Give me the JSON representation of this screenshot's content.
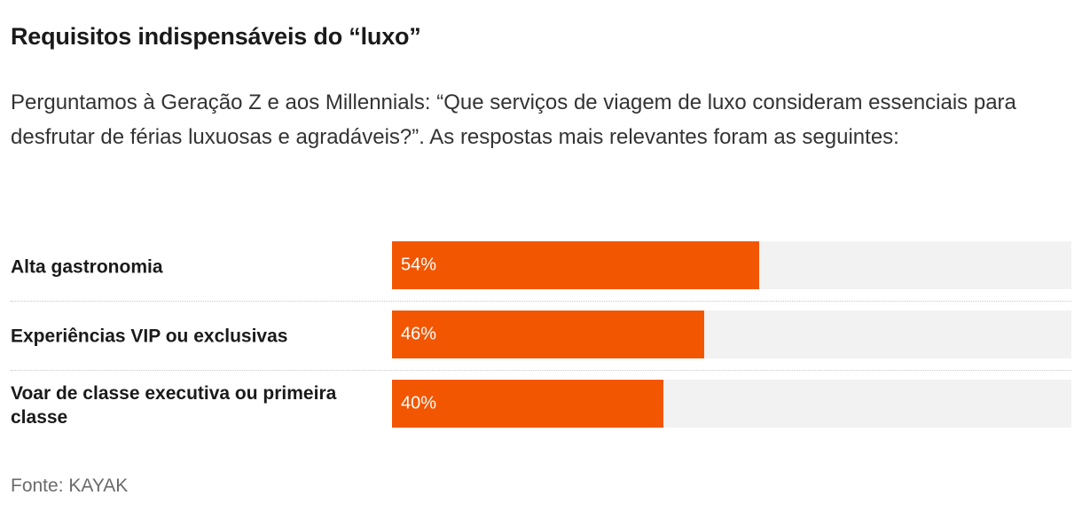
{
  "title": "Requisitos indispensáveis do “luxo”",
  "subtitle": "Perguntamos à Geração Z e aos Millennials: “Que serviços de viagem de luxo consideram essenciais para desfrutar de férias luxuosas e agradáveis?”. As respostas mais relevantes foram as seguintes:",
  "source": "Fonte: KAYAK",
  "colors": {
    "bar": "#f25600",
    "track": "#f2f2f2",
    "value_text": "#ffffff"
  },
  "chart_data": {
    "type": "bar",
    "orientation": "horizontal",
    "categories": [
      "Alta gastronomia",
      "Experiências VIP ou exclusivas",
      "Voar de classe executiva ou primeira classe"
    ],
    "values": [
      54,
      46,
      40
    ],
    "value_labels": [
      "54%",
      "46%",
      "40%"
    ],
    "unit": "%",
    "xlim": [
      0,
      100
    ]
  }
}
